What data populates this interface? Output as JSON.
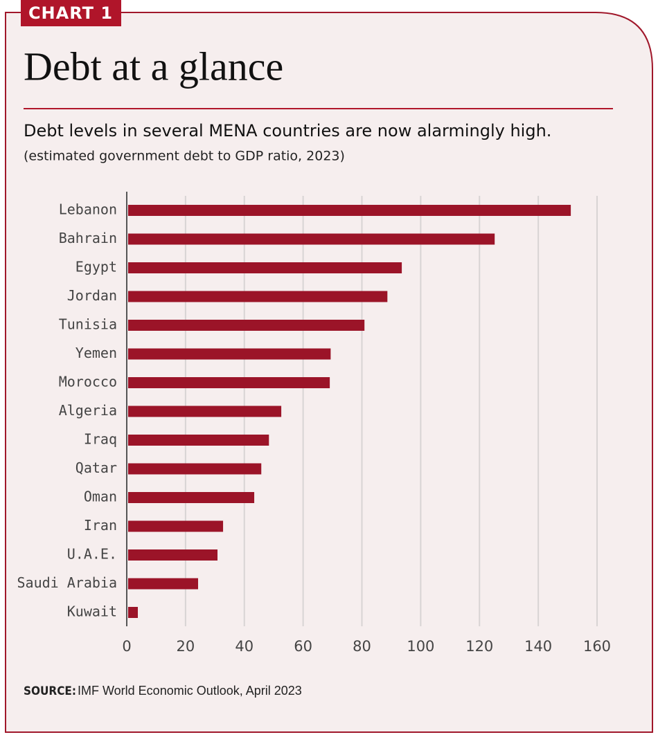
{
  "chart_data": {
    "type": "bar",
    "orientation": "horizontal",
    "label": "CHART 1",
    "title": "Debt at a glance",
    "subtitle": "Debt levels in several MENA countries are now alarmingly high.",
    "note": "(estimated government debt to GDP ratio, 2023)",
    "categories": [
      "Lebanon",
      "Bahrain",
      "Egypt",
      "Jordan",
      "Tunisia",
      "Yemen",
      "Morocco",
      "Algeria",
      "Iraq",
      "Qatar",
      "Oman",
      "Iran",
      "U.A.E.",
      "Saudi Arabia",
      "Kuwait"
    ],
    "values": [
      150.6,
      124.7,
      93.1,
      88.2,
      80.4,
      68.9,
      68.6,
      52.1,
      47.9,
      45.3,
      42.9,
      32.3,
      30.4,
      23.8,
      3.3
    ],
    "color": "#9b1428",
    "xlim": [
      0,
      160
    ],
    "xticks": [
      0,
      20,
      40,
      60,
      80,
      100,
      120,
      140,
      160
    ],
    "grid": true,
    "source": {
      "label": "SOURCE:",
      "text": "IMF World Economic Outlook, April 2023"
    }
  }
}
